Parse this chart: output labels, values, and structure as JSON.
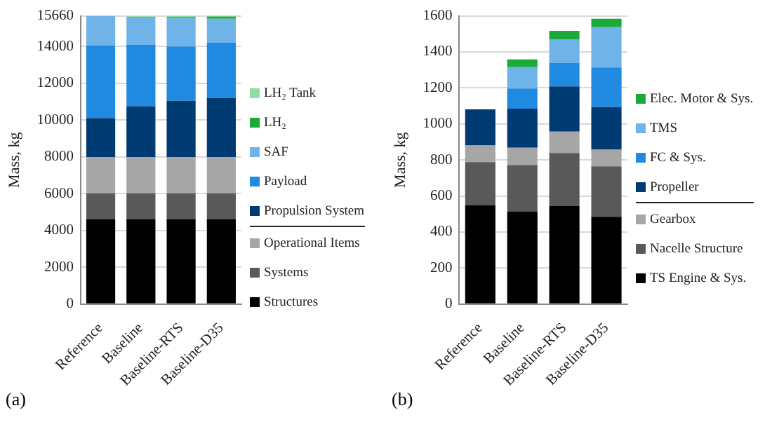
{
  "chart_data": [
    {
      "type": "bar",
      "stacked": true,
      "ylabel": "Mass, kg",
      "categories": [
        "Reference",
        "Baseline",
        "Baseline-RTS",
        "Baseline-D35"
      ],
      "ylim": [
        0,
        15660
      ],
      "yticks": [
        0,
        2000,
        4000,
        6000,
        8000,
        10000,
        12000,
        14000,
        15660
      ],
      "grid": "y",
      "legend": "right",
      "annotations": [
        "(a)"
      ],
      "series": [
        {
          "name": "Structures",
          "color": "#000000",
          "values": [
            4620,
            4620,
            4620,
            4620
          ]
        },
        {
          "name": "Systems",
          "color": "#595959",
          "values": [
            1400,
            1400,
            1400,
            1400
          ]
        },
        {
          "name": "Operational Items",
          "color": "#a6a6a6",
          "values": [
            1960,
            1960,
            1960,
            1960
          ]
        },
        {
          "name": "Propulsion System",
          "color": "#003a73",
          "values": [
            2120,
            2770,
            3070,
            3220
          ]
        },
        {
          "name": "Payload",
          "color": "#1f8ae0",
          "values": [
            3950,
            3350,
            2950,
            3000
          ]
        },
        {
          "name": "SAF",
          "color": "#6fb3e8",
          "values": [
            1610,
            1450,
            1560,
            1300
          ]
        },
        {
          "name": "LH₂",
          "color": "#1aaa3a",
          "values": [
            0,
            50,
            50,
            120
          ]
        },
        {
          "name": "LH₂ Tank",
          "color": "#8fdca0",
          "values": [
            0,
            40,
            40,
            40
          ]
        }
      ]
    },
    {
      "type": "bar",
      "stacked": true,
      "ylabel": "Mass, kg",
      "categories": [
        "Reference",
        "Baseline",
        "Baseline-RTS",
        "Baseline-D35"
      ],
      "ylim": [
        0,
        1600
      ],
      "yticks": [
        0,
        200,
        400,
        600,
        800,
        1000,
        1200,
        1400,
        1600
      ],
      "grid": "y",
      "legend": "right",
      "annotations": [
        "(b)"
      ],
      "series": [
        {
          "name": "TS Engine & Sys.",
          "color": "#000000",
          "values": [
            548,
            515,
            544,
            485
          ]
        },
        {
          "name": "Nacelle Structure",
          "color": "#595959",
          "values": [
            240,
            257,
            295,
            280
          ]
        },
        {
          "name": "Gearbox",
          "color": "#a6a6a6",
          "values": [
            92,
            96,
            118,
            92
          ]
        },
        {
          "name": "Propeller",
          "color": "#003a73",
          "values": [
            201,
            217,
            251,
            237
          ]
        },
        {
          "name": "FC & Sys.",
          "color": "#1f8ae0",
          "values": [
            0,
            112,
            130,
            219
          ]
        },
        {
          "name": "TMS",
          "color": "#6fb3e8",
          "values": [
            0,
            118,
            132,
            224
          ]
        },
        {
          "name": "Elec. Motor & Sys.",
          "color": "#1aaa3a",
          "values": [
            0,
            43,
            47,
            47
          ]
        }
      ]
    }
  ]
}
